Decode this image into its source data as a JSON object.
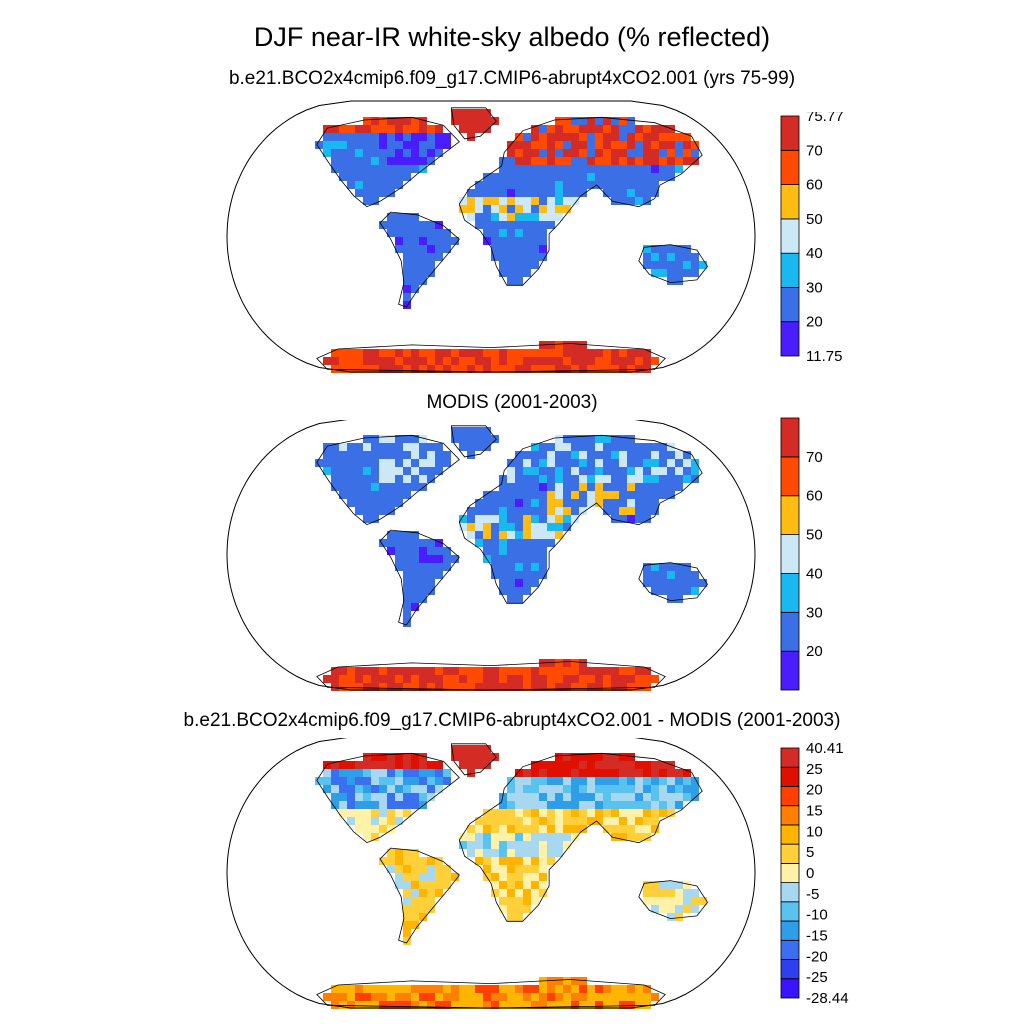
{
  "title": "DJF near-IR white-sky albedo (% reflected)",
  "panels": [
    {
      "subtitle": "b.e21.BCO2x4cmip6.f09_g17.CMIP6-abrupt4xCO2.001 (yrs 75-99)",
      "palette": "albedo",
      "colorbar": {
        "colors": [
          "#4a1dff",
          "#3b6fe6",
          "#1ab8f0",
          "#cce8f6",
          "#ffbd14",
          "#ff4a00",
          "#d42b24"
        ],
        "labels": [
          "11.75",
          "20",
          "30",
          "40",
          "50",
          "60",
          "70",
          "75.77"
        ]
      }
    },
    {
      "subtitle": "MODIS (2001-2003)",
      "palette": "albedo",
      "colorbar": {
        "colors": [
          "#4a1dff",
          "#3b6fe6",
          "#1ab8f0",
          "#cce8f6",
          "#ffbd14",
          "#ff4a00",
          "#d42b24"
        ],
        "labels": [
          "",
          "20",
          "30",
          "40",
          "50",
          "60",
          "70",
          ""
        ]
      }
    },
    {
      "subtitle": "b.e21.BCO2x4cmip6.f09_g17.CMIP6-abrupt4xCO2.001 - MODIS (2001-2003)",
      "palette": "diff",
      "colorbar": {
        "colors": [
          "#3a14ff",
          "#2d3fee",
          "#3a6ff0",
          "#2e9ee8",
          "#5ac2ef",
          "#a8d8ef",
          "#fff1a8",
          "#ffd03a",
          "#ffb400",
          "#ff7f00",
          "#ff4000",
          "#e01000",
          "#d42b24"
        ],
        "labels": [
          "-28.44",
          "-25",
          "-20",
          "-15",
          "-10",
          "-5",
          "0",
          "5",
          "10",
          "15",
          "20",
          "25",
          "40.41"
        ]
      }
    }
  ]
}
